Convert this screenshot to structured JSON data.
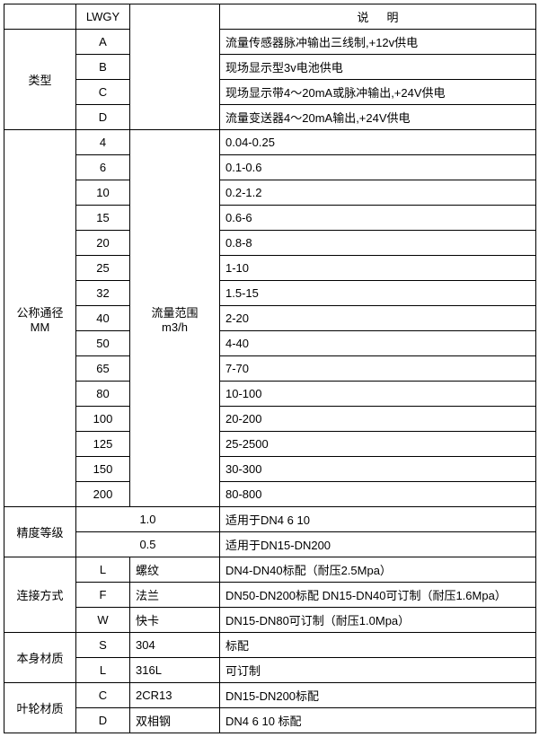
{
  "header": {
    "lwgy": "LWGY",
    "desc": "说明"
  },
  "type": {
    "label": "类型",
    "rows": [
      {
        "code": "A",
        "desc": "流量传感器脉冲输出三线制,+12v供电"
      },
      {
        "code": "B",
        "desc": "现场显示型3v电池供电"
      },
      {
        "code": "C",
        "desc": "现场显示带4～20mA或脉冲输出,+24V供电"
      },
      {
        "code": "D",
        "desc": "流量变送器4～20mA输出,+24V供电"
      }
    ]
  },
  "diameter": {
    "label_line1": "公称通径",
    "label_line2": "MM",
    "range_line1": "流量范围",
    "range_line2": "m3/h",
    "rows": [
      {
        "size": "4",
        "range": "0.04-0.25"
      },
      {
        "size": "6",
        "range": "0.1-0.6"
      },
      {
        "size": "10",
        "range": "0.2-1.2"
      },
      {
        "size": "15",
        "range": "0.6-6"
      },
      {
        "size": "20",
        "range": "0.8-8"
      },
      {
        "size": "25",
        "range": "1-10"
      },
      {
        "size": "32",
        "range": "1.5-15"
      },
      {
        "size": "40",
        "range": "2-20"
      },
      {
        "size": "50",
        "range": "4-40"
      },
      {
        "size": "65",
        "range": "7-70"
      },
      {
        "size": "80",
        "range": "10-100"
      },
      {
        "size": "100",
        "range": "20-200"
      },
      {
        "size": "125",
        "range": "25-2500"
      },
      {
        "size": "150",
        "range": "30-300"
      },
      {
        "size": "200",
        "range": "80-800"
      }
    ]
  },
  "accuracy": {
    "label": "精度等级",
    "rows": [
      {
        "grade": "1.0",
        "desc": "适用于DN4 6 10"
      },
      {
        "grade": "0.5",
        "desc": "适用于DN15-DN200"
      }
    ]
  },
  "connection": {
    "label": "连接方式",
    "rows": [
      {
        "code": "L",
        "name": "螺纹",
        "desc": "DN4-DN40标配（耐压2.5Mpa）"
      },
      {
        "code": "F",
        "name": "法兰",
        "desc": "DN50-DN200标配 DN15-DN40可订制（耐压1.6Mpa）"
      },
      {
        "code": "W",
        "name": "快卡",
        "desc": "DN15-DN80可订制（耐压1.0Mpa）"
      }
    ]
  },
  "body_material": {
    "label": "本身材质",
    "rows": [
      {
        "code": "S",
        "name": "304",
        "desc": "标配"
      },
      {
        "code": "L",
        "name": "316L",
        "desc": "可订制"
      }
    ]
  },
  "impeller_material": {
    "label": "叶轮材质",
    "rows": [
      {
        "code": "C",
        "name": "2CR13",
        "desc": "DN15-DN200标配"
      },
      {
        "code": "D",
        "name": "双相钢",
        "desc": "DN4 6 10 标配"
      }
    ]
  }
}
